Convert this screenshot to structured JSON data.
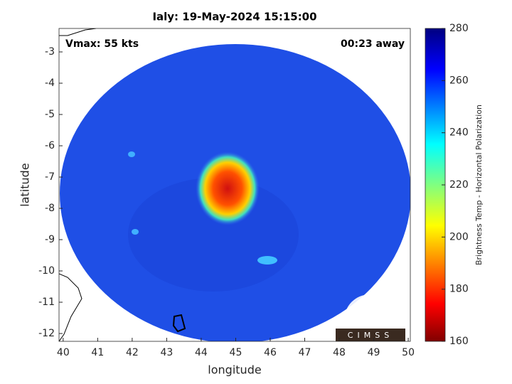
{
  "chart_data": {
    "type": "image",
    "title": "Ialy: 19-May-2024 15:15:00",
    "annotations": [
      "Vmax: 55 kts",
      "00:23 away"
    ],
    "x_label": "longitude",
    "y_label": "latitude",
    "xlim": [
      39.88,
      50.06
    ],
    "xticks": [
      40,
      41,
      42,
      43,
      44,
      45,
      46,
      47,
      48,
      49,
      50
    ],
    "ylim": [
      -12.25,
      -2.25
    ],
    "yticks": [
      -12,
      -11,
      -10,
      -9,
      -8,
      -7,
      -6,
      -5,
      -4,
      -3
    ],
    "colorbar": {
      "label": "Brightness Temp - Horizontal Polarization",
      "lim": [
        160,
        280
      ],
      "ticks": [
        160,
        180,
        200,
        220,
        240,
        260,
        280
      ]
    },
    "logo": "CIMSS"
  }
}
